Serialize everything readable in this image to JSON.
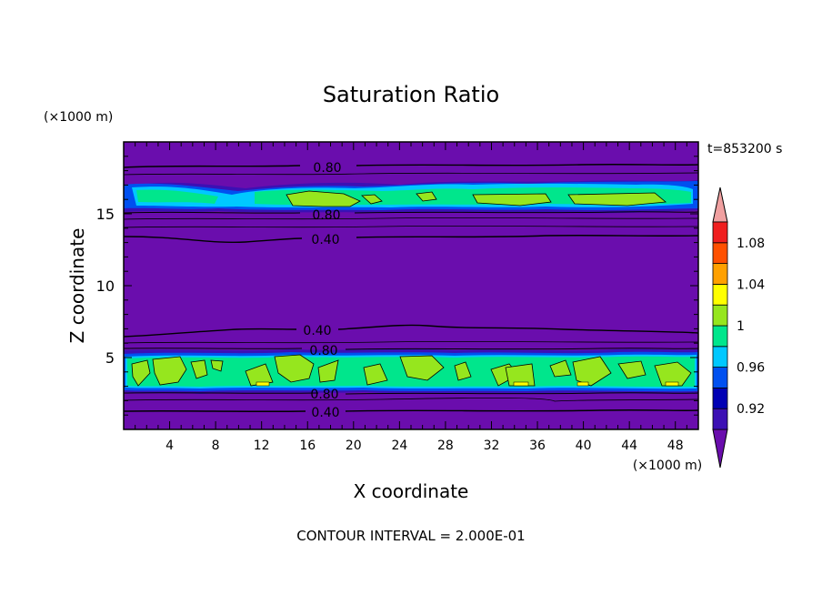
{
  "chart_data": {
    "type": "contour",
    "title": "Saturation Ratio",
    "xlabel": "X coordinate",
    "ylabel": "Z coordinate",
    "x_unit": "(×1000 m)",
    "y_unit": "(×1000 m)",
    "time_label": "t=853200 s",
    "footer": "CONTOUR INTERVAL = 2.000E-01",
    "xlim": [
      0,
      50
    ],
    "ylim": [
      0,
      20
    ],
    "xticks": [
      "4",
      "8",
      "12",
      "16",
      "20",
      "24",
      "28",
      "32",
      "36",
      "40",
      "44",
      "48"
    ],
    "yticks": [
      "5",
      "10",
      "15"
    ],
    "contour_interval": 0.2,
    "contour_lines": [
      {
        "label": "0.80",
        "z": 18.3
      },
      {
        "label": "0.80",
        "z": 14.9
      },
      {
        "label": "0.40",
        "z": 13.4
      },
      {
        "label": "0.40",
        "z": 7.0
      },
      {
        "label": "0.80",
        "z": 5.6
      },
      {
        "label": "0.80",
        "z": 2.6
      },
      {
        "label": "0.40",
        "z": 1.4
      }
    ],
    "colorbar": {
      "labels": [
        "0.92",
        "0.96",
        "1",
        "1.04",
        "1.08"
      ],
      "colors": [
        "#6a0dad",
        "#3c10b4",
        "#0000b4",
        "#0050f0",
        "#00c8ff",
        "#00e68c",
        "#96e61e",
        "#ffff00",
        "#ffa000",
        "#ff5000",
        "#f01e1e",
        "#f0a0a0"
      ]
    }
  }
}
